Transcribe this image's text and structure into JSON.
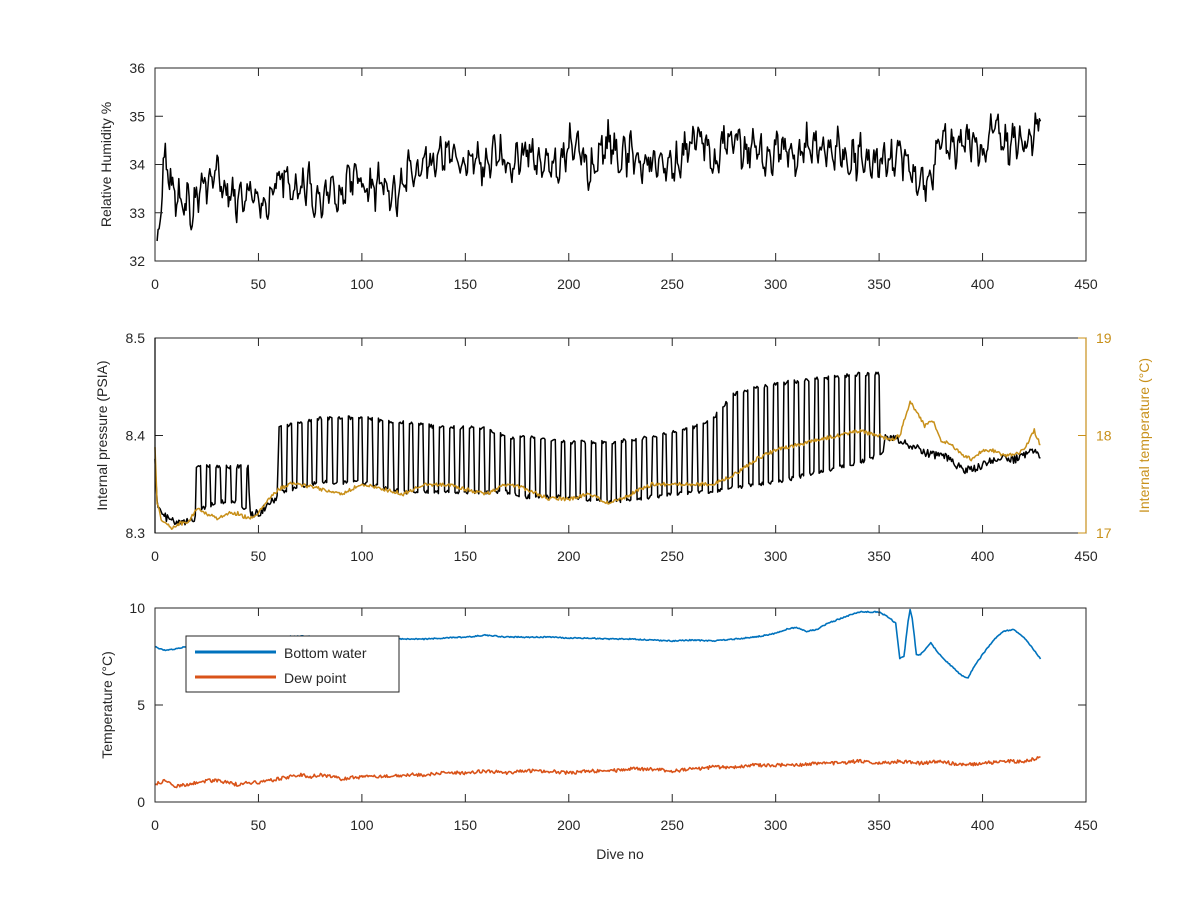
{
  "chart_data": [
    {
      "type": "line",
      "ylabel": "Relative Humidity %",
      "xlim": [
        0,
        450
      ],
      "ylim": [
        32,
        36
      ],
      "xticks": [
        0,
        50,
        100,
        150,
        200,
        250,
        300,
        350,
        400,
        450
      ],
      "yticks": [
        32,
        33,
        34,
        35,
        36
      ],
      "series": [
        {
          "color": "#000000",
          "x": [
            1,
            2,
            4,
            6,
            8,
            10,
            14,
            18,
            22,
            26,
            30,
            34,
            38,
            42,
            46,
            50,
            54,
            58,
            62,
            66,
            70,
            74,
            78,
            82,
            86,
            90,
            94,
            98,
            102,
            106,
            110,
            114,
            118,
            122,
            126,
            130,
            134,
            138,
            142,
            146,
            150,
            155,
            160,
            165,
            170,
            175,
            180,
            185,
            190,
            195,
            200,
            205,
            210,
            215,
            220,
            225,
            230,
            235,
            240,
            245,
            250,
            255,
            260,
            265,
            270,
            275,
            280,
            285,
            290,
            295,
            300,
            305,
            310,
            315,
            320,
            325,
            330,
            335,
            340,
            345,
            350,
            355,
            360,
            365,
            370,
            375,
            380,
            385,
            390,
            395,
            400,
            405,
            410,
            415,
            420,
            425,
            428
          ],
          "values": [
            32.1,
            32.9,
            33.9,
            34.2,
            33.5,
            33.4,
            33.2,
            33.1,
            33.5,
            33.6,
            33.9,
            33.4,
            33.3,
            33.2,
            33.5,
            33.1,
            33.2,
            33.6,
            33.8,
            33.5,
            33.4,
            33.7,
            33.2,
            33.4,
            33.5,
            33.3,
            33.8,
            33.7,
            33.5,
            33.5,
            33.6,
            33.3,
            33.4,
            33.9,
            33.7,
            34.1,
            34.0,
            34.2,
            34.4,
            34.1,
            34.0,
            34.2,
            33.9,
            34.4,
            34.0,
            34.1,
            34.3,
            34.0,
            34.2,
            33.9,
            34.4,
            34.3,
            33.9,
            34.2,
            34.5,
            34.1,
            34.3,
            33.9,
            34.2,
            34.0,
            33.9,
            34.2,
            34.4,
            34.6,
            33.9,
            34.5,
            34.6,
            34.2,
            34.5,
            34.0,
            34.3,
            34.3,
            34.1,
            34.4,
            34.4,
            34.2,
            34.3,
            34.0,
            34.2,
            34.0,
            34.1,
            34.0,
            34.2,
            33.9,
            33.5,
            33.7,
            34.6,
            34.3,
            34.4,
            34.5,
            34.2,
            34.9,
            34.4,
            34.4,
            34.5,
            34.6,
            35.0
          ]
        }
      ]
    },
    {
      "type": "line",
      "ylabel": "Internal pressure (PSIA)",
      "y2label": "Internal temperature (°C)",
      "xlim": [
        0,
        450
      ],
      "ylim": [
        8.3,
        8.5
      ],
      "y2lim": [
        17,
        19
      ],
      "xticks": [
        0,
        50,
        100,
        150,
        200,
        250,
        300,
        350,
        400,
        450
      ],
      "yticks": [
        8.3,
        8.4,
        8.5
      ],
      "y2ticks": [
        17,
        18,
        19
      ],
      "series": [
        {
          "axis": "left",
          "color": "#000000",
          "style": "oscillating",
          "x": [
            0,
            1,
            3,
            6,
            10,
            14,
            19,
            20,
            30,
            40,
            45,
            46,
            50,
            55,
            59,
            60,
            80,
            100,
            120,
            140,
            160,
            170,
            180,
            200,
            220,
            240,
            260,
            270,
            280,
            300,
            320,
            340,
            352,
            353,
            360,
            365,
            370,
            375,
            380,
            385,
            390,
            395,
            400,
            405,
            410,
            415,
            420,
            425,
            428
          ],
          "values": [
            8.38,
            8.33,
            8.32,
            8.315,
            8.31,
            8.31,
            8.315,
            8.33,
            8.34,
            8.335,
            8.33,
            8.32,
            8.32,
            8.33,
            8.335,
            8.36,
            8.37,
            8.37,
            8.36,
            8.355,
            8.36,
            8.36,
            8.35,
            8.345,
            8.345,
            8.35,
            8.36,
            8.37,
            8.39,
            8.395,
            8.4,
            8.4,
            8.4,
            8.4,
            8.395,
            8.39,
            8.385,
            8.38,
            8.38,
            8.375,
            8.365,
            8.365,
            8.37,
            8.375,
            8.38,
            8.375,
            8.38,
            8.385,
            8.38
          ],
          "upper": [
            8.38,
            8.33,
            8.32,
            8.315,
            8.31,
            8.31,
            8.315,
            8.37,
            8.37,
            8.37,
            8.37,
            8.32,
            8.32,
            8.33,
            8.335,
            8.41,
            8.42,
            8.42,
            8.415,
            8.41,
            8.41,
            8.4,
            8.4,
            8.395,
            8.395,
            8.4,
            8.41,
            8.42,
            8.445,
            8.455,
            8.46,
            8.465,
            8.465,
            8.4,
            8.395,
            8.39,
            8.385,
            8.38,
            8.38,
            8.375,
            8.365,
            8.365,
            8.37,
            8.375,
            8.38,
            8.375,
            8.38,
            8.385,
            8.38
          ],
          "lower": [
            8.38,
            8.33,
            8.32,
            8.315,
            8.31,
            8.31,
            8.315,
            8.32,
            8.33,
            8.33,
            8.32,
            8.32,
            8.32,
            8.33,
            8.335,
            8.34,
            8.35,
            8.35,
            8.34,
            8.34,
            8.34,
            8.34,
            8.335,
            8.335,
            8.33,
            8.335,
            8.34,
            8.34,
            8.345,
            8.35,
            8.36,
            8.37,
            8.38,
            8.4,
            8.395,
            8.39,
            8.385,
            8.38,
            8.38,
            8.375,
            8.365,
            8.365,
            8.37,
            8.375,
            8.38,
            8.375,
            8.38,
            8.385,
            8.38
          ]
        },
        {
          "axis": "right",
          "color": "#C8901A",
          "x": [
            0,
            1,
            3,
            5,
            8,
            12,
            16,
            20,
            25,
            30,
            35,
            40,
            45,
            50,
            55,
            60,
            65,
            70,
            80,
            90,
            100,
            110,
            120,
            130,
            140,
            150,
            160,
            170,
            180,
            190,
            200,
            210,
            220,
            230,
            240,
            250,
            260,
            270,
            280,
            290,
            300,
            310,
            320,
            330,
            340,
            350,
            355,
            360,
            365,
            368,
            372,
            376,
            380,
            385,
            390,
            395,
            400,
            405,
            410,
            415,
            420,
            425,
            428
          ],
          "values": [
            17.9,
            17.3,
            17.15,
            17.1,
            17.05,
            17.1,
            17.1,
            17.25,
            17.2,
            17.15,
            17.2,
            17.2,
            17.15,
            17.2,
            17.35,
            17.45,
            17.5,
            17.5,
            17.45,
            17.4,
            17.5,
            17.45,
            17.4,
            17.5,
            17.5,
            17.45,
            17.4,
            17.5,
            17.45,
            17.35,
            17.35,
            17.4,
            17.3,
            17.4,
            17.5,
            17.5,
            17.5,
            17.5,
            17.6,
            17.75,
            17.85,
            17.9,
            17.95,
            18.0,
            18.05,
            18.0,
            17.95,
            18.0,
            18.35,
            18.25,
            18.1,
            18.15,
            17.95,
            17.9,
            17.8,
            17.75,
            17.85,
            17.85,
            17.8,
            17.8,
            17.85,
            18.05,
            17.9
          ]
        }
      ]
    },
    {
      "type": "line",
      "xlabel": "Dive no",
      "ylabel": "Temperature (°C)",
      "xlim": [
        0,
        450
      ],
      "ylim": [
        0,
        10
      ],
      "xticks": [
        0,
        50,
        100,
        150,
        200,
        250,
        300,
        350,
        400,
        450
      ],
      "yticks": [
        0,
        5,
        10
      ],
      "legend": "top-left",
      "series": [
        {
          "name": "Bottom water",
          "color": "#0072BD",
          "x": [
            0,
            5,
            10,
            15,
            20,
            30,
            40,
            50,
            60,
            70,
            80,
            90,
            100,
            110,
            120,
            130,
            140,
            150,
            160,
            165,
            170,
            180,
            190,
            200,
            210,
            220,
            230,
            240,
            250,
            260,
            270,
            280,
            290,
            300,
            305,
            310,
            315,
            320,
            325,
            330,
            335,
            340,
            345,
            350,
            355,
            358,
            360,
            362,
            364,
            365,
            366,
            368,
            370,
            375,
            380,
            385,
            390,
            393,
            396,
            400,
            405,
            410,
            415,
            420,
            425,
            428
          ],
          "values": [
            8.0,
            7.8,
            7.9,
            8.0,
            8.1,
            8.2,
            8.3,
            8.4,
            8.5,
            8.55,
            8.5,
            8.45,
            8.5,
            8.45,
            8.4,
            8.4,
            8.45,
            8.5,
            8.6,
            8.55,
            8.5,
            8.5,
            8.5,
            8.45,
            8.45,
            8.4,
            8.4,
            8.35,
            8.3,
            8.35,
            8.3,
            8.4,
            8.5,
            8.7,
            8.9,
            9.0,
            8.8,
            8.9,
            9.2,
            9.4,
            9.6,
            9.8,
            9.8,
            9.8,
            9.5,
            9.2,
            7.4,
            7.5,
            9.3,
            9.9,
            9.5,
            7.6,
            7.6,
            8.2,
            7.5,
            7.0,
            6.5,
            6.4,
            7.0,
            7.6,
            8.3,
            8.8,
            8.9,
            8.5,
            7.8,
            7.4
          ]
        },
        {
          "name": "Dew point",
          "color": "#D95319",
          "x": [
            0,
            5,
            10,
            15,
            20,
            25,
            30,
            35,
            40,
            45,
            50,
            55,
            60,
            65,
            70,
            75,
            80,
            90,
            100,
            110,
            120,
            130,
            140,
            150,
            160,
            170,
            180,
            190,
            200,
            210,
            220,
            230,
            240,
            250,
            260,
            270,
            280,
            290,
            300,
            310,
            320,
            330,
            340,
            350,
            360,
            370,
            380,
            390,
            400,
            410,
            420,
            428
          ],
          "values": [
            0.9,
            1.1,
            0.8,
            0.9,
            1.0,
            1.1,
            1.1,
            1.0,
            0.9,
            1.0,
            1.0,
            1.1,
            1.2,
            1.3,
            1.4,
            1.3,
            1.4,
            1.2,
            1.3,
            1.3,
            1.4,
            1.4,
            1.5,
            1.5,
            1.6,
            1.5,
            1.6,
            1.6,
            1.5,
            1.6,
            1.6,
            1.7,
            1.7,
            1.6,
            1.7,
            1.8,
            1.8,
            1.9,
            1.9,
            1.9,
            2.0,
            2.0,
            2.1,
            2.0,
            2.1,
            2.0,
            2.1,
            1.9,
            2.0,
            2.1,
            2.1,
            2.3
          ]
        }
      ]
    }
  ]
}
